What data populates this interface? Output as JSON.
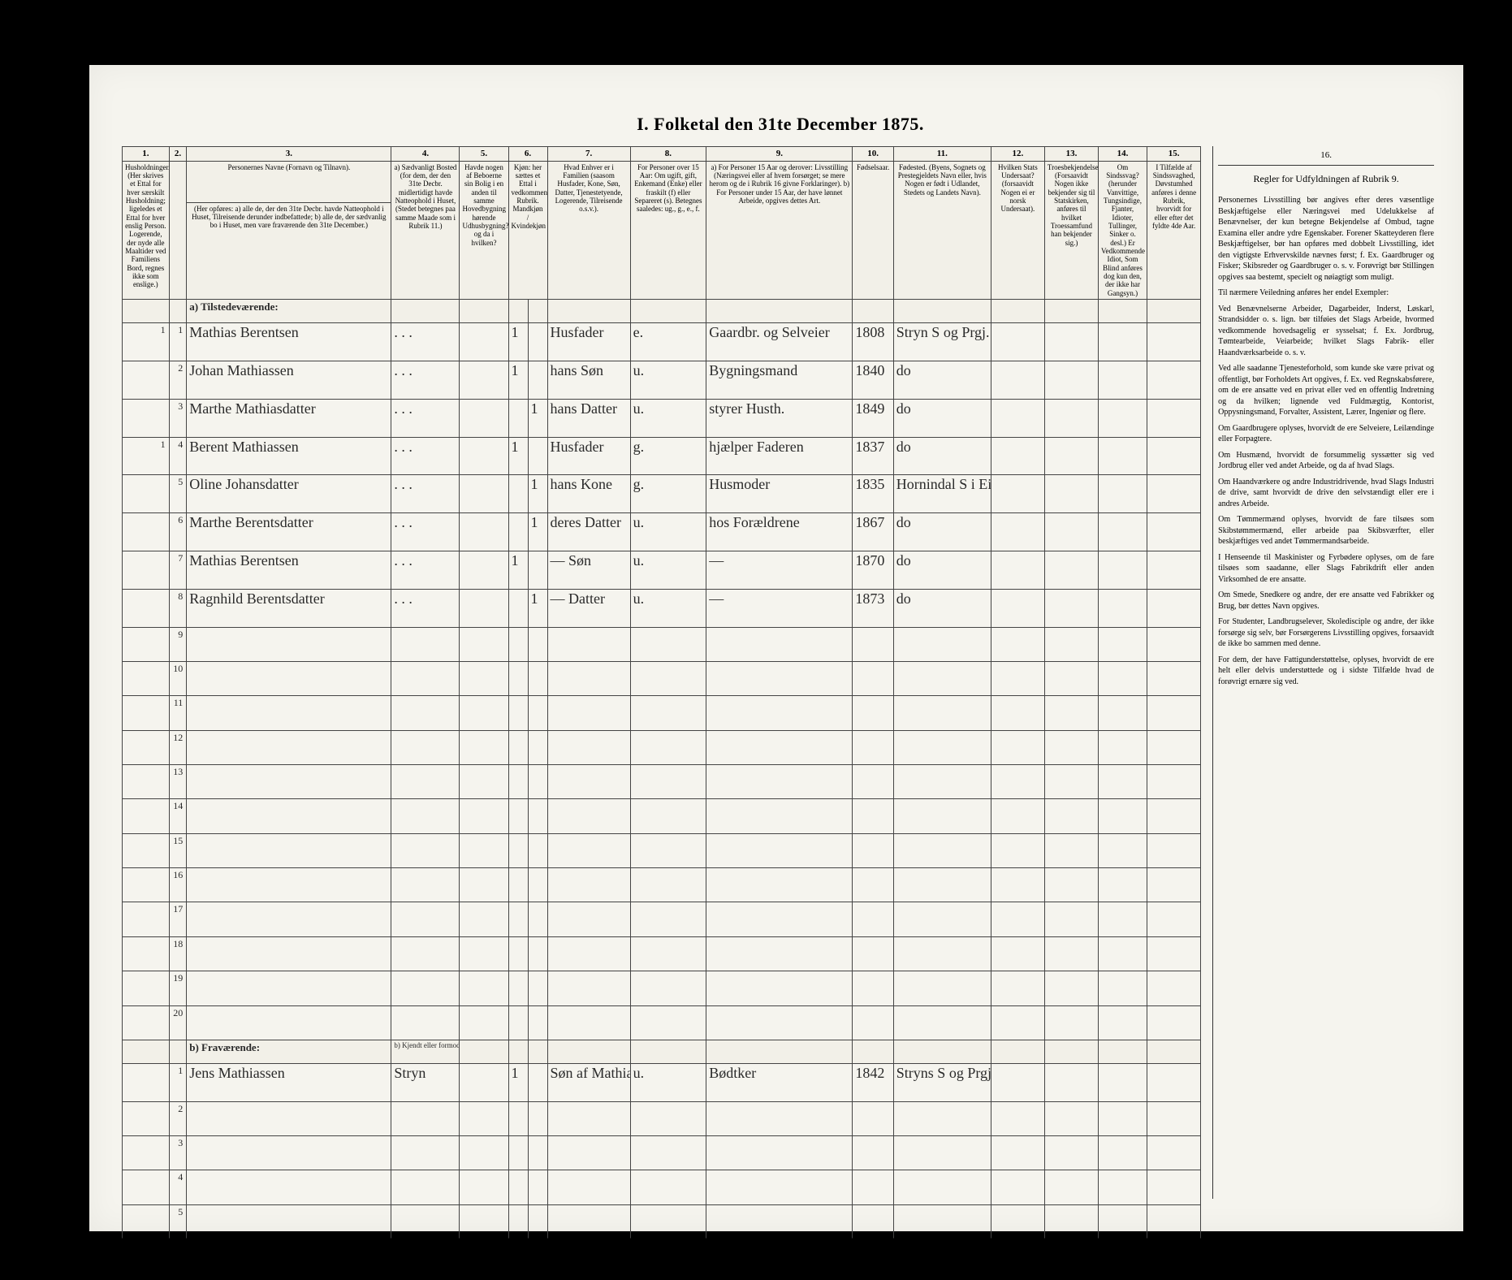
{
  "title": "I. Folketal den 31te December 1875.",
  "columns": {
    "nums": [
      "1.",
      "2.",
      "3.",
      "4.",
      "5.",
      "6.",
      "7.",
      "8.",
      "9.",
      "10.",
      "11.",
      "12.",
      "13.",
      "14.",
      "15.",
      "16."
    ],
    "h1": "Husholdninger. (Her skrives et Ettal for hver særskilt Husholdning; ligeledes et Ettal for hver enslig Person. Logerende, der nyde alle Maaltider ved Familiens Bord, regnes ikke som enslige.)",
    "h2": "",
    "h3_title": "Personernes Navne (Fornavn og Tilnavn).",
    "h3_sub": "(Her opføres: a) alle de, der den 31te Decbr. havde Natteophold i Huset, Tilreisende derunder indbefattede; b) alle de, der sædvanlig bo i Huset, men vare fraværende den 31te December.)",
    "h4": "a) Sædvanligt Bosted (for dem, der den 31te Decbr. midlertidigt havde Natteophold i Huset, (Stedet betegnes paa samme Maade som i Rubrik 11.)",
    "h5": "Havde nogen af Beboerne sin Bolig i en anden til samme Hovedbygning hørende Udhusbygning? og da i hvilken?",
    "h6": "Kjøn: her sættes et Ettal i vedkommende Rubrik. Mandkjøn / Kvindekjøn",
    "h7": "Hvad Enhver er i Familien (saasom Husfader, Kone, Søn, Datter, Tjenestetyende, Logerende, Tilreisende o.s.v.).",
    "h8": "For Personer over 15 Aar: Om ugift, gift, Enkemand (Enke) eller fraskilt (f) eller Separeret (s). Betegnes saaledes: ug., g., e., f.",
    "h9": "a) For Personer 15 Aar og derover: Livsstilling (Næringsvei eller af hvem forsørget; se mere herom og de i Rubrik 16 givne Forklaringer). b) For Personer under 15 Aar, der have lønnet Arbeide, opgives dettes Art.",
    "h10": "Fødselsaar.",
    "h11": "Fødested. (Byens, Sognets og Prestegjeldets Navn eller, hvis Nogen er født i Udlandet, Stedets og Landets Navn).",
    "h12": "Hvilken Stats Undersaat? (forsaavidt Nogen ei er norsk Undersaat).",
    "h13": "Troesbekjendelse. (Forsaavidt Nogen ikke bekjender sig til Statskirken, anføres til hvilket Troessamfund han bekjender sig.)",
    "h14": "Om Sindssvag? (herunder Vanvittige, Tungsindige, Fjanter, Idioter, Tullinger, Sinker o. desl.) Er Vedkommende Idiot, Som Blind anføres dog kun den, der ikke har Gangsyn.)",
    "h15": "I Tilfælde af Sindssvaghed, Døvstumhed anføres i denne Rubrik, hvorvidt for eller efter det fyldte 4de Aar.",
    "h16_title": "Regler for Udfyldningen af Rubrik 9."
  },
  "sections": {
    "a": "a) Tilstedeværende:",
    "b": "b) Fraværende:",
    "b_col4": "b) Kjendt eller formodet Opholdssted."
  },
  "rows_a": [
    {
      "n": "1",
      "hh": "1",
      "name": "Mathias Berentsen",
      "c4": ". . .",
      "c5": "",
      "m": "1",
      "k": "",
      "fam": "Husfader",
      "civ": "e.",
      "occ": "Gaardbr. og Selveier",
      "yr": "1808",
      "bp": "Stryn S og Prgj."
    },
    {
      "n": "2",
      "hh": "",
      "name": "Johan Mathiassen",
      "c4": ". . .",
      "c5": "",
      "m": "1",
      "k": "",
      "fam": "hans Søn",
      "civ": "u.",
      "occ": "Bygningsmand",
      "yr": "1840",
      "bp": "do"
    },
    {
      "n": "3",
      "hh": "",
      "name": "Marthe Mathiasdatter",
      "c4": ". . .",
      "c5": "",
      "m": "",
      "k": "1",
      "fam": "hans Datter",
      "civ": "u.",
      "occ": "styrer Husth.",
      "yr": "1849",
      "bp": "do"
    },
    {
      "n": "4",
      "hh": "1",
      "name": "Berent Mathiassen",
      "c4": ". . .",
      "c5": "",
      "m": "1",
      "k": "",
      "fam": "Husfader",
      "civ": "g.",
      "occ": "hjælper Faderen",
      "yr": "1837",
      "bp": "do"
    },
    {
      "n": "5",
      "hh": "",
      "name": "Oline Johansdatter",
      "c4": ". . .",
      "c5": "",
      "m": "",
      "k": "1",
      "fam": "hans Kone",
      "civ": "g.",
      "occ": "Husmoder",
      "yr": "1835",
      "bp": "Hornindal S i Eids Prgj."
    },
    {
      "n": "6",
      "hh": "",
      "name": "Marthe Berentsdatter",
      "c4": ". . .",
      "c5": "",
      "m": "",
      "k": "1",
      "fam": "deres Datter",
      "civ": "u.",
      "occ": "hos Forældrene",
      "yr": "1867",
      "bp": "do"
    },
    {
      "n": "7",
      "hh": "",
      "name": "Mathias Berentsen",
      "c4": ". . .",
      "c5": "",
      "m": "1",
      "k": "",
      "fam": "— Søn",
      "civ": "u.",
      "occ": "—",
      "yr": "1870",
      "bp": "do"
    },
    {
      "n": "8",
      "hh": "",
      "name": "Ragnhild Berentsdatter",
      "c4": ". . .",
      "c5": "",
      "m": "",
      "k": "1",
      "fam": "— Datter",
      "civ": "u.",
      "occ": "—",
      "yr": "1873",
      "bp": "do"
    }
  ],
  "empty_a": [
    "9",
    "10",
    "11",
    "12",
    "13",
    "14",
    "15",
    "16",
    "17",
    "18",
    "19",
    "20"
  ],
  "rows_b": [
    {
      "n": "1",
      "hh": "",
      "name": "Jens Mathiassen",
      "c4": "Stryn",
      "c5": "",
      "m": "1",
      "k": "",
      "fam": "Søn af Mathias Berentsen",
      "civ": "u.",
      "occ": "Bødtker",
      "yr": "1842",
      "bp": "Stryns S og Prgj."
    }
  ],
  "empty_b": [
    "2",
    "3",
    "4",
    "5"
  ],
  "rules_text": [
    "Personernes Livsstilling bør angives efter deres væsentlige Beskjæftigelse eller Næringsvei med Udelukkelse af Benævnelser, der kun betegne Bekjendelse af Ombud, tagne Examina eller andre ydre Egenskaber. Forener Skatteyderen flere Beskjæftigelser, bør han opføres med dobbelt Livsstilling, idet den vigtigste Erhvervskilde nævnes først; f. Ex. Gaardbruger og Fisker; Skibsreder og Gaardbruger o. s. v. Forøvrigt bør Stillingen opgives saa bestemt, specielt og nøiagtigt som muligt.",
    "Til nærmere Veiledning anføres her endel Exempler:",
    "Ved Benævnelserne Arbeider, Dagarbeider, Inderst, Løskarl, Strandsidder o. s. lign. bør tilføies det Slags Arbeide, hvormed vedkommende hovedsagelig er sysselsat; f. Ex. Jordbrug, Tømtearbeide, Veiarbeide; hvilket Slags Fabrik- eller Haandværksarbeide o. s. v.",
    "Ved alle saadanne Tjenesteforhold, som kunde ske være privat og offentligt, bør Forholdets Art opgives, f. Ex. ved Regnskabsførere, om de ere ansatte ved en privat eller ved en offentlig Indretning og da hvilken; lignende ved Fuldmægtig, Kontorist, Oppysningsmand, Forvalter, Assistent, Lærer, Ingeniør og flere.",
    "Om Gaardbrugere oplyses, hvorvidt de ere Selveiere, Leilændinge eller Forpagtere.",
    "Om Husmænd, hvorvidt de forsummelig syssætter sig ved Jordbrug eller ved andet Arbeide, og da af hvad Slags.",
    "Om Haandværkere og andre Industridrivende, hvad Slags Industri de drive, samt hvorvidt de drive den selvstændigt eller ere i andres Arbeide.",
    "Om Tømmermænd oplyses, hvorvidt de fare tilsøes som Skibstømmermænd, eller arbeide paa Skibsværfter, eller beskjæftiges ved andet Tømmermandsarbeide.",
    "I Henseende til Maskinister og Fyrbødere oplyses, om de fare tilsøes som saadanne, eller Slags Fabrikdrift eller anden Virksomhed de ere ansatte.",
    "Om Smede, Snedkere og andre, der ere ansatte ved Fabrikker og Brug, bør dettes Navn opgives.",
    "For Studenter, Landbrugselever, Skoledisciple og andre, der ikke forsørge sig selv, bør Forsørgerens Livsstilling opgives, forsaavidt de ikke bo sammen med denne.",
    "For dem, der have Fattigunderstøttelse, oplyses, hvorvidt de ere helt eller delvis understøttede og i sidste Tilfælde hvad de forøvrigt ernære sig ved."
  ]
}
